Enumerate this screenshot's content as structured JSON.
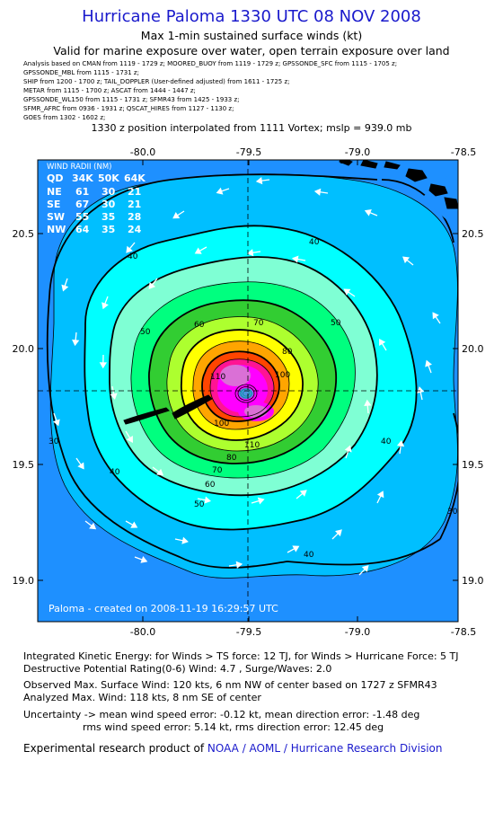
{
  "header": {
    "title": "Hurricane Paloma 1330 UTC 08 NOV 2008",
    "subtitle1": "Max 1-min sustained surface winds (kt)",
    "subtitle2": "Valid for marine exposure over water, open terrain exposure over land",
    "analysis_lines": [
      "Analysis based on  CMAN from 1119 - 1729 z;   MOORED_BUOY from 1119 - 1729 z;  GPSSONDE_SFC from 1115 - 1705 z;",
      "GPSSONDE_MBL from 1115 - 1731 z;",
      "SHIP from 1200 - 1700 z;  TAIL_DOPPLER (User-defined adjusted) from 1611 - 1725 z;",
      "METAR from 1115 - 1700 z;  ASCAT from 1444 - 1447 z;",
      "GPSSONDE_WL150 from 1115 - 1731 z;  SFMR43 from 1425 - 1933 z;",
      "SFMR_AFRC from 0936 - 1931 z;  QSCAT_HIRES from 1127 - 1130 z;",
      "GOES from 1302 - 1602 z;"
    ],
    "position_line": "1330 z position interpolated from 1111 Vortex; mslp = 939.0 mb"
  },
  "map": {
    "lon_labels": [
      "-80.0",
      "-79.5",
      "-79.0",
      "-78.5"
    ],
    "lat_labels": [
      "20.5",
      "20.0",
      "19.5",
      "19.0"
    ],
    "wind_radii": {
      "title": "WIND RADII (NM)",
      "header": [
        "QD",
        "34K",
        "50K",
        "64K"
      ],
      "rows": [
        [
          "NE",
          "61",
          "30",
          "21"
        ],
        [
          "SE",
          "67",
          "30",
          "21"
        ],
        [
          "SW",
          "55",
          "35",
          "28"
        ],
        [
          "NW",
          "64",
          "35",
          "24"
        ]
      ]
    },
    "contour_labels": [
      "30",
      "30",
      "30",
      "40",
      "40",
      "40",
      "40",
      "40",
      "50",
      "50",
      "50",
      "60",
      "60",
      "70",
      "70",
      "80",
      "80",
      "100",
      "100",
      "110",
      "110"
    ],
    "footer_text": "Paloma - created on 2008-11-19 16:29:57 UTC",
    "colors": {
      "c30": "#1e90ff",
      "c40": "#00bfff",
      "c50": "#00ffff",
      "c60": "#7fffd4",
      "c70": "#00ff7f",
      "c80": "#32cd32",
      "c90": "#adff2f",
      "c100": "#ffff00",
      "c110": "#ffa500",
      "c120": "#ff4500",
      "c130": "#ff1493",
      "c140": "#ff00ff",
      "c150": "#da70d6",
      "land": "#000000"
    }
  },
  "stats": {
    "ike": "Integrated Kinetic Energy:  for Winds > TS force: 12 TJ,  for Winds > Hurricane Force: 5 TJ",
    "dpr": "Destructive Potential Rating(0-6)   Wind: 4.7 , Surge/Waves: 2.0",
    "observed": "Observed Max. Surface Wind: 120 kts, 6 nm NW of center based on 1727 z SFMR43",
    "analyzed": "Analyzed Max. Wind: 118 kts, 8 nm SE of center",
    "uncertainty1": "Uncertainty -> mean wind speed error:  -0.12 kt,   mean direction error:  -1.48 deg",
    "uncertainty2": "rms wind speed error: 5.14 kt,   rms direction error: 12.45 deg"
  },
  "credit": {
    "prefix": "Experimental research product of ",
    "org": "NOAA / AOML / Hurricane Research Division"
  }
}
